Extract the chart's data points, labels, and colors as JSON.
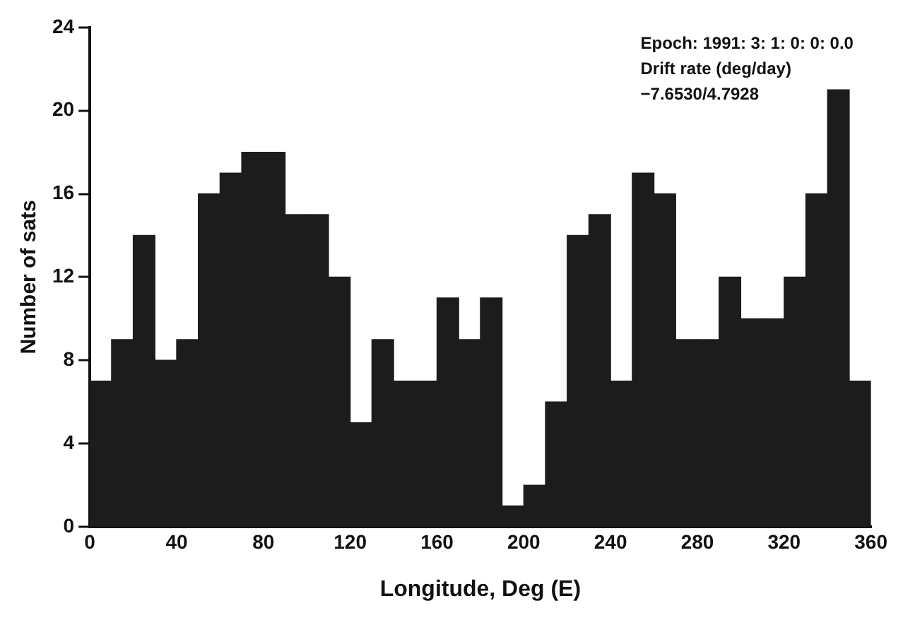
{
  "chart_data": {
    "type": "histogram",
    "xlabel": "Longitude, Deg (E)",
    "ylabel": "Number of sats",
    "annotations": [
      "Epoch: 1991: 3: 1: 0: 0: 0.0",
      "Drift rate (deg/day)",
      "−7.6530/4.7928"
    ],
    "bins": [
      0,
      10,
      20,
      30,
      40,
      50,
      60,
      70,
      80,
      90,
      100,
      110,
      120,
      130,
      140,
      150,
      160,
      170,
      180,
      190,
      200,
      210,
      220,
      230,
      240,
      250,
      260,
      270,
      280,
      290,
      300,
      310,
      320,
      330,
      340,
      350,
      360
    ],
    "values": [
      7,
      9,
      14,
      8,
      9,
      16,
      17,
      18,
      18,
      15,
      15,
      12,
      5,
      9,
      7,
      7,
      11,
      9,
      11,
      1,
      2,
      6,
      14,
      15,
      7,
      17,
      16,
      9,
      9,
      12,
      10,
      10,
      12,
      16,
      21,
      7
    ],
    "color": "#1c1c1c",
    "xlim": [
      0,
      360
    ],
    "xticks": [
      0,
      40,
      80,
      120,
      160,
      200,
      240,
      280,
      320,
      360
    ],
    "ylim": [
      0,
      24
    ],
    "yticks": [
      0,
      4,
      8,
      12,
      16,
      20,
      24
    ],
    "grid": false
  }
}
